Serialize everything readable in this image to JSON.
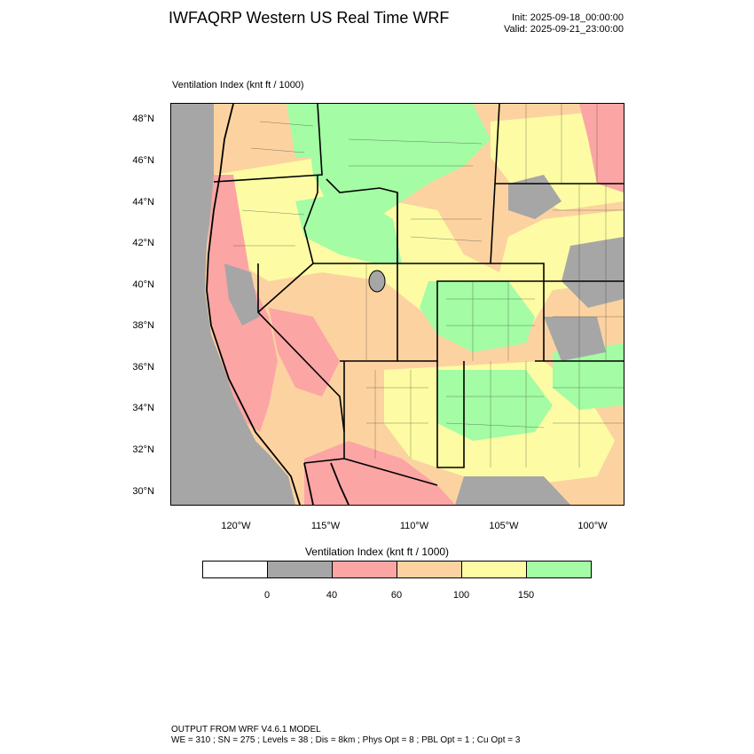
{
  "header": {
    "title": "IWFAQRP Western US Real Time WRF",
    "init": "Init: 2025-09-18_00:00:00",
    "valid": "Valid: 2025-09-21_23:00:00"
  },
  "map": {
    "label": "Ventilation Index   (knt ft / 1000)",
    "lat_labels": [
      "48°N",
      "46°N",
      "44°N",
      "42°N",
      "40°N",
      "38°N",
      "36°N",
      "34°N",
      "32°N",
      "30°N"
    ],
    "lon_labels": [
      "120°W",
      "115°W",
      "110°W",
      "105°W",
      "100°W"
    ]
  },
  "colorbar": {
    "title": "Ventilation Index   (knt ft / 1000)",
    "colors": [
      "#ffffff",
      "#a6a6a6",
      "#fca5a5",
      "#fcd3a0",
      "#fdfca4",
      "#a4fca4"
    ],
    "labels": [
      "0",
      "40",
      "60",
      "100",
      "150"
    ]
  },
  "footer": {
    "line1": "OUTPUT FROM WRF V4.6.1 MODEL",
    "line2": "WE = 310 ; SN = 275 ; Levels = 38 ; Dis = 8km ; Phys Opt = 8 ; PBL Opt = 1 ; Cu Opt = 3"
  }
}
